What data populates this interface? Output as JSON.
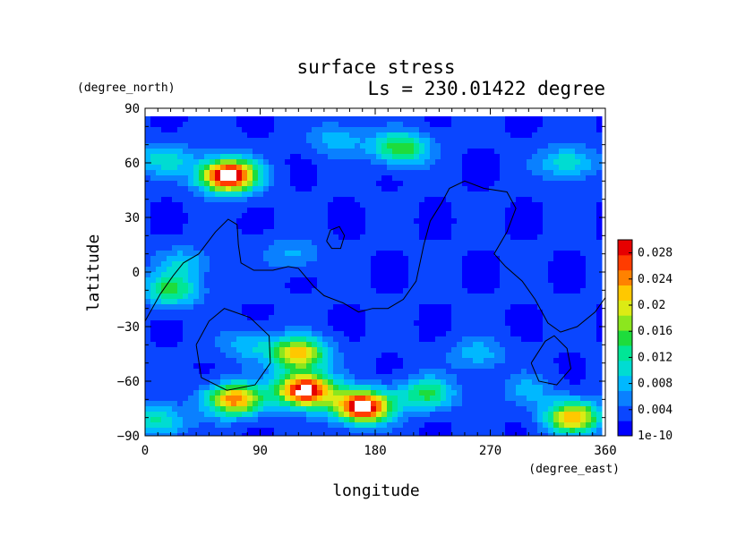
{
  "chart_data": {
    "type": "heatmap",
    "title": "surface stress",
    "subtitle": "Ls = 230.01422 degree",
    "xlabel": "longitude",
    "ylabel": "latitude",
    "x_units": "(degree_east)",
    "y_units": "(degree_north)",
    "xlim": [
      0,
      360
    ],
    "ylim": [
      -90,
      90
    ],
    "x_ticks": [
      "0",
      "90",
      "180",
      "270",
      "360"
    ],
    "y_ticks": [
      "90",
      "60",
      "30",
      "0",
      "−30",
      "−60",
      "−90"
    ],
    "colorbar": {
      "range": [
        0,
        0.03
      ],
      "tick_labels": [
        "0.028",
        "0.024",
        "0.02",
        "0.016",
        "0.012",
        "0.008",
        "0.004",
        "1e-10"
      ],
      "tick_values": [
        0.028,
        0.024,
        0.02,
        0.016,
        0.012,
        0.008,
        0.004,
        0
      ],
      "colors": [
        "#0000ff",
        "#0a46ff",
        "#0a80ff",
        "#00b8ff",
        "#00dcd2",
        "#00e696",
        "#1edc3c",
        "#8ce61e",
        "#dceb14",
        "#ffc800",
        "#ff8200",
        "#ff3c00",
        "#e60000"
      ]
    },
    "background_level": 0.0025,
    "hotspots": [
      {
        "lon": 65,
        "lat": 53,
        "value": 0.031
      },
      {
        "lon": 15,
        "lat": 62,
        "value": 0.008
      },
      {
        "lon": 200,
        "lat": 68,
        "value": 0.014
      },
      {
        "lon": 150,
        "lat": 73,
        "value": 0.006
      },
      {
        "lon": 330,
        "lat": 60,
        "value": 0.009
      },
      {
        "lon": 20,
        "lat": -10,
        "value": 0.012
      },
      {
        "lon": 30,
        "lat": 5,
        "value": 0.006
      },
      {
        "lon": 115,
        "lat": 10,
        "value": 0.005
      },
      {
        "lon": 125,
        "lat": -65,
        "value": 0.03
      },
      {
        "lon": 170,
        "lat": -74,
        "value": 0.03
      },
      {
        "lon": 120,
        "lat": -45,
        "value": 0.02
      },
      {
        "lon": 70,
        "lat": -70,
        "value": 0.022
      },
      {
        "lon": 220,
        "lat": -67,
        "value": 0.012
      },
      {
        "lon": 300,
        "lat": -65,
        "value": 0.005
      },
      {
        "lon": 335,
        "lat": -80,
        "value": 0.02
      },
      {
        "lon": 10,
        "lat": -82,
        "value": 0.01
      },
      {
        "lon": 80,
        "lat": -40,
        "value": 0.006
      },
      {
        "lon": 260,
        "lat": -45,
        "value": 0.006
      }
    ],
    "contour_lines": [
      [
        [
          0,
          -27
        ],
        [
          12,
          -12
        ],
        [
          22,
          -2
        ],
        [
          30,
          5
        ],
        [
          42,
          10
        ],
        [
          55,
          22
        ],
        [
          65,
          29
        ],
        [
          72,
          26
        ],
        [
          73,
          15
        ],
        [
          75,
          5
        ],
        [
          85,
          1
        ],
        [
          100,
          1
        ],
        [
          112,
          3
        ],
        [
          120,
          2
        ],
        [
          132,
          -8
        ],
        [
          140,
          -13
        ],
        [
          155,
          -17
        ],
        [
          167,
          -22
        ],
        [
          178,
          -20
        ],
        [
          190,
          -20
        ],
        [
          202,
          -15
        ],
        [
          212,
          -5
        ],
        [
          218,
          15
        ],
        [
          223,
          28
        ],
        [
          232,
          38
        ],
        [
          238,
          46
        ],
        [
          250,
          50
        ],
        [
          265,
          46
        ],
        [
          283,
          44
        ],
        [
          290,
          35
        ],
        [
          283,
          22
        ],
        [
          273,
          10
        ],
        [
          282,
          3
        ],
        [
          295,
          -5
        ],
        [
          305,
          -15
        ],
        [
          315,
          -28
        ],
        [
          325,
          -33
        ],
        [
          338,
          -30
        ],
        [
          352,
          -22
        ],
        [
          360,
          -14
        ]
      ],
      [
        [
          142,
          17
        ],
        [
          145,
          23
        ],
        [
          152,
          25
        ],
        [
          156,
          20
        ],
        [
          153,
          13
        ],
        [
          146,
          13
        ],
        [
          142,
          17
        ]
      ],
      [
        [
          40,
          -40
        ],
        [
          50,
          -27
        ],
        [
          62,
          -20
        ],
        [
          82,
          -25
        ],
        [
          97,
          -35
        ],
        [
          98,
          -50
        ],
        [
          86,
          -62
        ],
        [
          64,
          -65
        ],
        [
          44,
          -58
        ],
        [
          40,
          -40
        ]
      ],
      [
        [
          302,
          -50
        ],
        [
          313,
          -38
        ],
        [
          320,
          -35
        ],
        [
          330,
          -42
        ],
        [
          333,
          -53
        ],
        [
          322,
          -62
        ],
        [
          308,
          -60
        ],
        [
          302,
          -50
        ]
      ]
    ]
  }
}
